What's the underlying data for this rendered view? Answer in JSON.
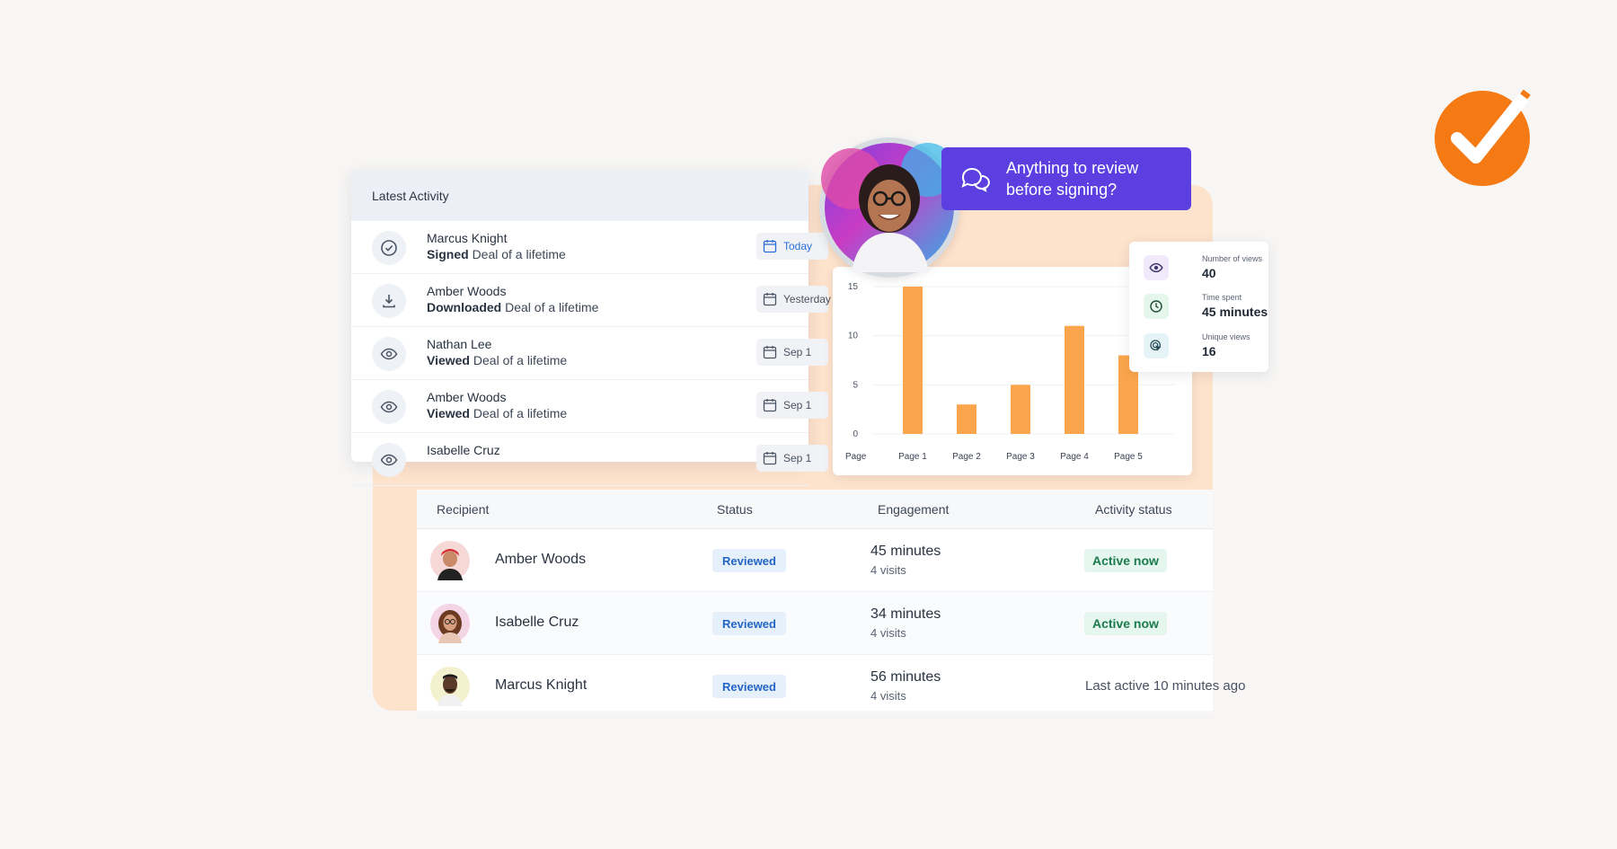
{
  "activity": {
    "title": "Latest Activity",
    "items": [
      {
        "name": "Marcus Knight",
        "action": "Signed",
        "doc": "Deal of a lifetime",
        "date": "Today",
        "icon": "check-circle-icon"
      },
      {
        "name": "Amber Woods",
        "action": "Downloaded",
        "doc": "Deal of a lifetime",
        "date": "Yesterday",
        "icon": "download-icon"
      },
      {
        "name": "Nathan Lee",
        "action": "Viewed",
        "doc": "Deal of a lifetime",
        "date": "Sep 1",
        "icon": "eye-icon"
      },
      {
        "name": "Amber Woods",
        "action": "Viewed",
        "doc": "Deal of a lifetime",
        "date": "Sep 1",
        "icon": "eye-icon"
      },
      {
        "name": "Isabelle Cruz",
        "action": "",
        "doc": "",
        "date": "Sep 1",
        "icon": "eye-icon"
      }
    ]
  },
  "chat": {
    "message": "Anything to review before signing?"
  },
  "stats": [
    {
      "label": "Number of views",
      "value": "40",
      "icon": "eye-icon",
      "color": "#efe9fb"
    },
    {
      "label": "Time spent",
      "value": "45 minutes",
      "icon": "clock-icon",
      "color": "#e5f6ec"
    },
    {
      "label": "Unique views",
      "value": "16",
      "icon": "cursor-click-icon",
      "color": "#e6f4f8"
    }
  ],
  "chart_data": {
    "type": "bar",
    "xlabel": "Page",
    "categories": [
      "Page 1",
      "Page 2",
      "Page 3",
      "Page 4",
      "Page 5"
    ],
    "values": [
      15,
      3,
      5,
      11,
      8
    ],
    "yticks": [
      "0",
      "5",
      "10",
      "15"
    ],
    "ylim": [
      0,
      15
    ],
    "bar_color": "#fba64c"
  },
  "table": {
    "headers": [
      "Recipient",
      "Status",
      "Engagement",
      "Activity status"
    ],
    "rows": [
      {
        "name": "Amber Woods",
        "status": "Reviewed",
        "time": "45 minutes",
        "visits": "4 visits",
        "activity": "Active now",
        "active": true
      },
      {
        "name": "Isabelle Cruz",
        "status": "Reviewed",
        "time": "34 minutes",
        "visits": "4 visits",
        "activity": "Active now",
        "active": true
      },
      {
        "name": "Marcus Knight",
        "status": "Reviewed",
        "time": "56 minutes",
        "visits": "4 visits",
        "activity": "Last active 10 minutes ago",
        "active": false
      }
    ]
  },
  "brand": {
    "logo": "checkmark-logo-icon",
    "color": "#f57a14"
  }
}
